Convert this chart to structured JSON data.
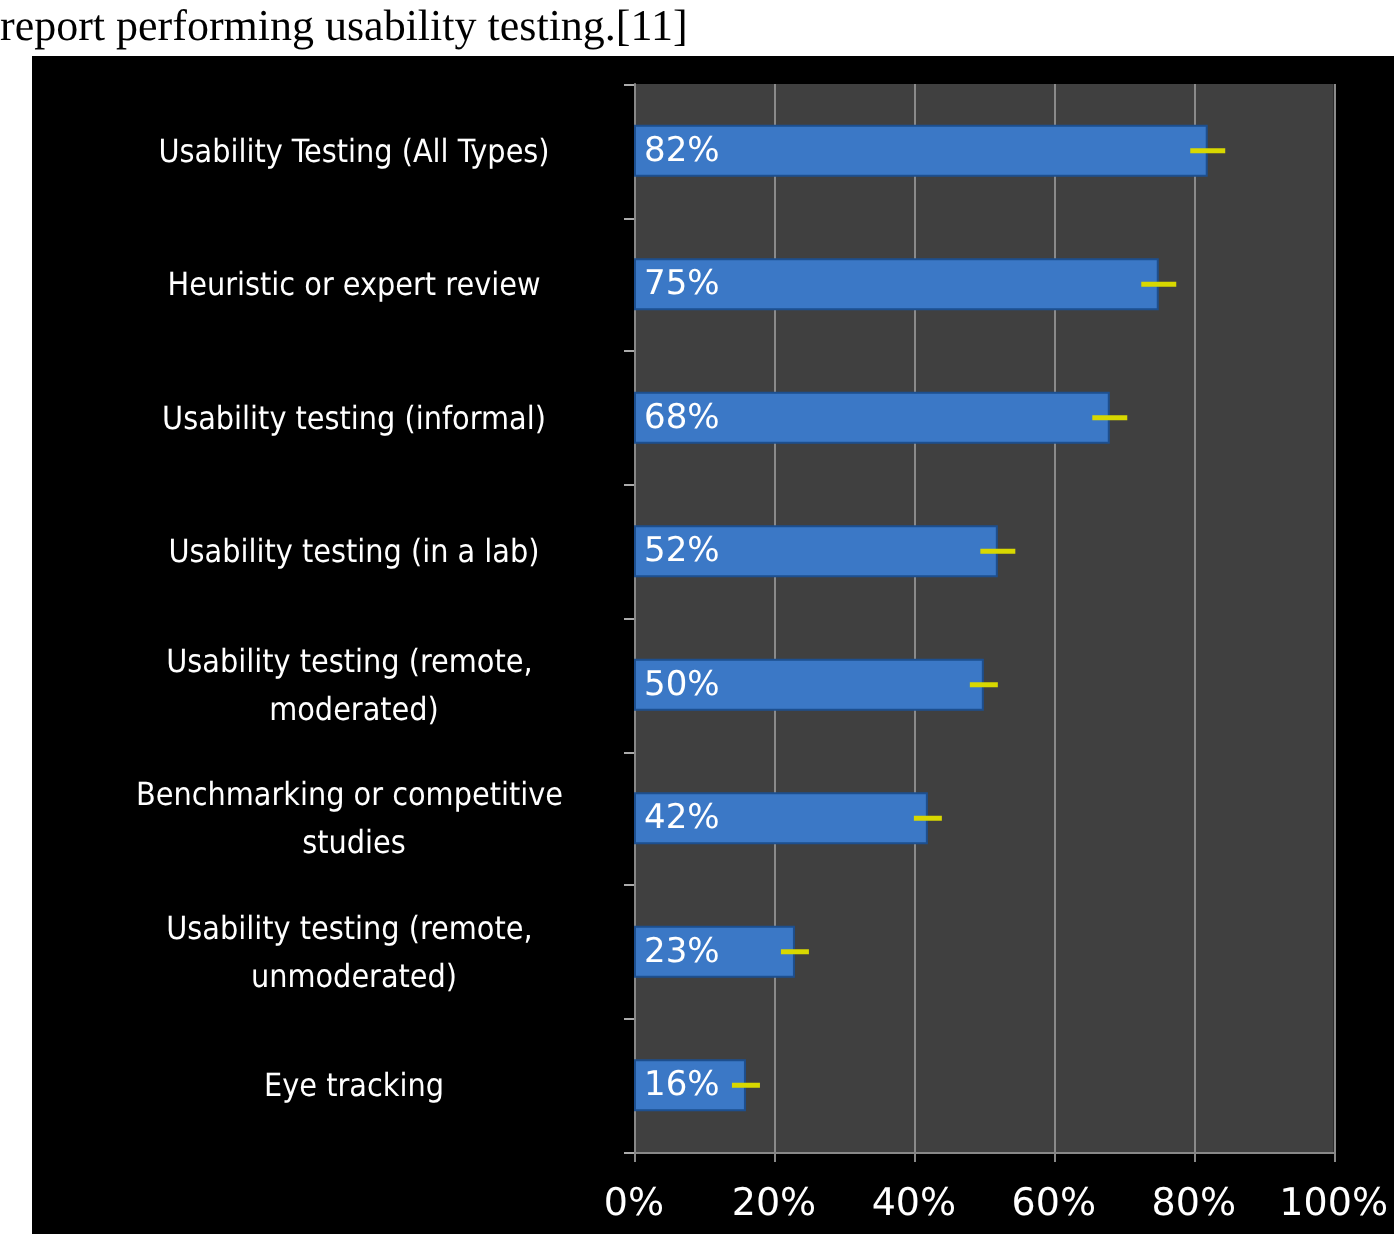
{
  "chart_data": {
    "type": "bar",
    "orientation": "horizontal",
    "title": "report performing usability testing.[11]",
    "categories": [
      "Usability Testing (All Types)",
      "Heuristic or expert review",
      "Usability testing (informal)",
      "Usability testing (in a lab)",
      "Usability testing (remote, moderated)",
      "Benchmarking or competitive studies",
      "Usability testing (remote, unmoderated)",
      "Eye tracking"
    ],
    "values": [
      82,
      75,
      68,
      52,
      50,
      42,
      23,
      16
    ],
    "value_labels": [
      "82%",
      "75%",
      "68%",
      "52%",
      "50%",
      "42%",
      "23%",
      "16%"
    ],
    "errors": [
      2.5,
      2.5,
      2.5,
      2.5,
      2,
      2,
      2,
      2
    ],
    "color": "#3b78c6",
    "xlim": [
      0,
      100
    ],
    "xticks": [
      {
        "value": 0,
        "label": "0%"
      },
      {
        "value": 20,
        "label": "20%"
      },
      {
        "value": 40,
        "label": "40%"
      },
      {
        "value": 60,
        "label": "60%"
      },
      {
        "value": 80,
        "label": "80%"
      },
      {
        "value": 100,
        "label": "100%"
      }
    ],
    "grid": "x"
  }
}
